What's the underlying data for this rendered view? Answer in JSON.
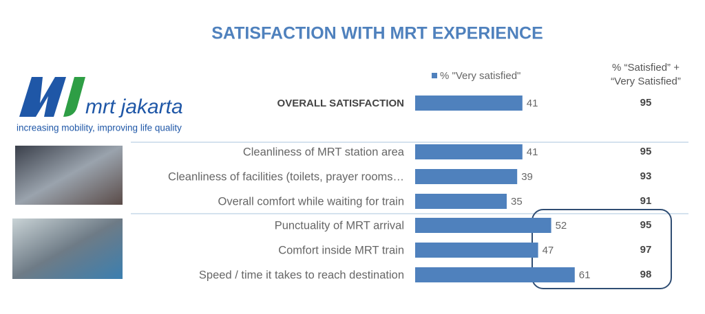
{
  "chart_data": {
    "type": "bar",
    "orientation": "horizontal",
    "title": "SATISFACTION WITH MRT EXPERIENCE",
    "categories": [
      "OVERALL SATISFACTION",
      "Cleanliness of MRT station area",
      "Cleanliness of facilities (toilets, prayer rooms…",
      "Overall comfort while waiting for train",
      "Punctuality of MRT arrival",
      "Comfort inside MRT train",
      "Speed / time it takes to reach destination"
    ],
    "series": [
      {
        "name": "% \"Very satisfied\"",
        "color": "#4f81bd",
        "values": [
          41,
          41,
          39,
          35,
          52,
          47,
          61
        ]
      }
    ],
    "second_column_title": [
      "% “Satisfied” +",
      "“Very Satisfied”"
    ],
    "second_column_values": [
      95,
      95,
      93,
      91,
      95,
      97,
      98
    ]
  },
  "logo": {
    "name": "mrt jakarta",
    "tagline": "increasing mobility, improving life quality"
  }
}
